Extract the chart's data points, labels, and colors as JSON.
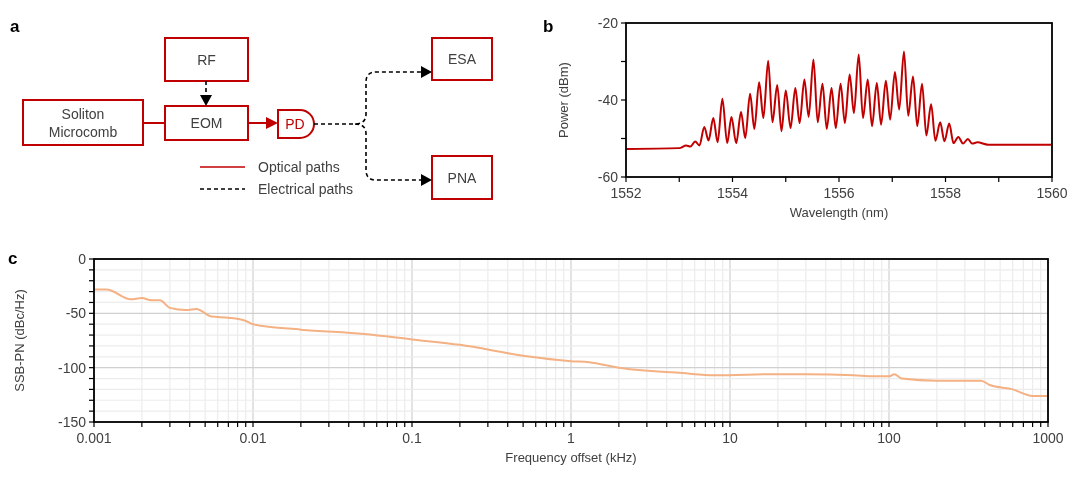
{
  "chart_data": [
    {
      "type": "other",
      "title": "a",
      "annotations": [
        "RF",
        "Soliton Microcomb",
        "EOM",
        "PD",
        "ESA",
        "PNA",
        "Optical paths",
        "Electrical paths"
      ]
    },
    {
      "type": "line",
      "title": "b",
      "xlabel": "Wavelength (nm)",
      "ylabel": "Power (dBm)",
      "xlim": [
        1552,
        1560
      ],
      "ylim": [
        -60,
        -20
      ],
      "xticks": [
        1552,
        {
          "value": 1553,
          "label": null
        },
        1554,
        {
          "value": 1555,
          "label": null
        },
        1556,
        {
          "value": 1557,
          "label": null
        },
        1558,
        {
          "value": 1559,
          "label": null
        },
        1560
      ],
      "yticks": [
        -60,
        {
          "value": -50,
          "label": null
        },
        -40,
        {
          "value": -30,
          "label": null
        },
        -20
      ],
      "grid": false,
      "series": [
        {
          "color": "#c00000",
          "x": [
            1552,
            1553,
            1553.13,
            1553.21,
            1553.3,
            1553.38,
            1553.47,
            1553.55,
            1553.64,
            1553.72,
            1553.81,
            1553.9,
            1553.98,
            1554.07,
            1554.16,
            1554.24,
            1554.33,
            1554.41,
            1554.5,
            1554.58,
            1554.67,
            1554.75,
            1554.84,
            1554.92,
            1555,
            1555.09,
            1555.18,
            1555.26,
            1555.35,
            1555.43,
            1555.52,
            1555.6,
            1555.69,
            1555.77,
            1555.86,
            1555.94,
            1556.03,
            1556.11,
            1556.2,
            1556.28,
            1556.37,
            1556.45,
            1556.54,
            1556.62,
            1556.71,
            1556.79,
            1556.88,
            1556.96,
            1557.05,
            1557.13,
            1557.22,
            1557.3,
            1557.39,
            1557.47,
            1557.56,
            1557.64,
            1557.73,
            1557.81,
            1557.9,
            1557.98,
            1558.07,
            1558.15,
            1558.24,
            1558.33,
            1558.42,
            1558.5,
            1558.6,
            1558.8,
            1560
          ],
          "values": [
            -52.7,
            -52.5,
            -51.8,
            -52.1,
            -50.8,
            -51.8,
            -47,
            -50.5,
            -44.7,
            -51,
            -39.7,
            -51.2,
            -44.4,
            -51.2,
            -43.1,
            -49.9,
            -38.4,
            -47.5,
            -35.4,
            -44.7,
            -29.8,
            -45.8,
            -36.1,
            -48.1,
            -37.5,
            -47.3,
            -36.9,
            -46,
            -34.7,
            -44.4,
            -29.5,
            -45.8,
            -35.8,
            -47.5,
            -36.9,
            -47.3,
            -35.8,
            -46,
            -33.4,
            -43.4,
            -28.2,
            -44.7,
            -34.7,
            -46.8,
            -35.6,
            -46.4,
            -35,
            -45.1,
            -32.7,
            -42.5,
            -27.4,
            -44.1,
            -33.9,
            -46.8,
            -35.8,
            -49.2,
            -41.1,
            -50.6,
            -45.8,
            -50.7,
            -46.1,
            -51.2,
            -49.6,
            -51.3,
            -50.1,
            -51.3,
            -51,
            -51.6,
            -51.6
          ]
        }
      ]
    },
    {
      "type": "line",
      "title": "c",
      "xlabel": "Frequency offset (kHz)",
      "ylabel": "SSB-PN (dBc/Hz)",
      "log": "x",
      "xlim": [
        0.001,
        1000
      ],
      "ylim": [
        -150,
        0
      ],
      "xticks": [
        0.001,
        {
          "value": 0.002,
          "label": null
        },
        {
          "value": 0.003,
          "label": null
        },
        {
          "value": 0.004,
          "label": null
        },
        {
          "value": 0.005,
          "label": null
        },
        {
          "value": 0.006,
          "label": null
        },
        {
          "value": 0.007,
          "label": null
        },
        {
          "value": 0.008,
          "label": null
        },
        {
          "value": 0.009,
          "label": null
        },
        0.01,
        {
          "value": 0.02,
          "label": null
        },
        {
          "value": 0.03,
          "label": null
        },
        {
          "value": 0.04,
          "label": null
        },
        {
          "value": 0.05,
          "label": null
        },
        {
          "value": 0.06,
          "label": null
        },
        {
          "value": 0.07,
          "label": null
        },
        {
          "value": 0.08,
          "label": null
        },
        {
          "value": 0.09,
          "label": null
        },
        0.1,
        {
          "value": 0.2,
          "label": null
        },
        {
          "value": 0.3,
          "label": null
        },
        {
          "value": 0.4,
          "label": null
        },
        {
          "value": 0.5,
          "label": null
        },
        {
          "value": 0.6,
          "label": null
        },
        {
          "value": 0.7,
          "label": null
        },
        {
          "value": 0.8,
          "label": null
        },
        {
          "value": 0.9,
          "label": null
        },
        1,
        {
          "value": 2,
          "label": null
        },
        {
          "value": 3,
          "label": null
        },
        {
          "value": 4,
          "label": null
        },
        {
          "value": 5,
          "label": null
        },
        {
          "value": 6,
          "label": null
        },
        {
          "value": 7,
          "label": null
        },
        {
          "value": 8,
          "label": null
        },
        {
          "value": 9,
          "label": null
        },
        10,
        {
          "value": 20,
          "label": null
        },
        {
          "value": 30,
          "label": null
        },
        {
          "value": 40,
          "label": null
        },
        {
          "value": 50,
          "label": null
        },
        {
          "value": 60,
          "label": null
        },
        {
          "value": 70,
          "label": null
        },
        {
          "value": 80,
          "label": null
        },
        {
          "value": 90,
          "label": null
        },
        100,
        {
          "value": 200,
          "label": null
        },
        {
          "value": 300,
          "label": null
        },
        {
          "value": 400,
          "label": null
        },
        {
          "value": 500,
          "label": null
        },
        {
          "value": 600,
          "label": null
        },
        {
          "value": 700,
          "label": null
        },
        {
          "value": 800,
          "label": null
        },
        {
          "value": 900,
          "label": null
        },
        1000
      ],
      "yticks": [
        -150,
        {
          "value": -140,
          "label": null
        },
        {
          "value": -130,
          "label": null
        },
        {
          "value": -120,
          "label": null
        },
        {
          "value": -110,
          "label": null
        },
        -100,
        {
          "value": -90,
          "label": null
        },
        {
          "value": -80,
          "label": null
        },
        {
          "value": -70,
          "label": null
        },
        {
          "value": -60,
          "label": null
        },
        -50,
        {
          "value": -40,
          "label": null
        },
        {
          "value": -30,
          "label": null
        },
        {
          "value": -20,
          "label": null
        },
        {
          "value": -10,
          "label": null
        },
        0
      ],
      "grid": true,
      "series": [
        {
          "color": "#f4b183",
          "x": [
            0.001,
            0.0012,
            0.0017,
            0.002,
            0.0023,
            0.0026,
            0.003,
            0.0038,
            0.0044,
            0.0055,
            0.007,
            0.009,
            0.01,
            0.02,
            0.05,
            0.1,
            0.2,
            0.5,
            1,
            1.3,
            2,
            5,
            8,
            20,
            30,
            60,
            80,
            100,
            108,
            120,
            200,
            380,
            430,
            600,
            800,
            1000
          ],
          "values": [
            -28,
            -28,
            -37,
            -36,
            -38,
            -38,
            -45,
            -47,
            -46,
            -53,
            -54,
            -57,
            -60,
            -65,
            -69,
            -74,
            -79,
            -89,
            -94,
            -95,
            -100,
            -105,
            -107,
            -106,
            -106,
            -107,
            -108,
            -108,
            -106,
            -110,
            -112,
            -112,
            -116,
            -120,
            -126,
            -126
          ]
        }
      ]
    }
  ]
}
